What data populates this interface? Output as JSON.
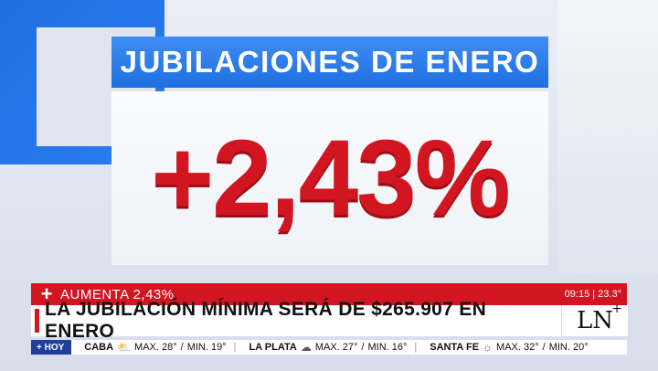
{
  "title": "JUBILACIONES DE ENERO",
  "big_number": "+2,43%",
  "ticker": {
    "plus": "+",
    "kicker": "AUMENTA 2,43%",
    "time": "09:15 | 23.3°",
    "headline": "LA JUBILACIÓN MÍNIMA SERÁ DE $265.907 EN ENERO",
    "logo": "LN",
    "logo_plus": "+",
    "hoy": "+ HOY",
    "weather": [
      {
        "city": "CABA",
        "icon": "cloud-sun-icon",
        "glyph": "⛅",
        "max": "MAX. 28°",
        "min": "MIN. 19°"
      },
      {
        "city": "LA PLATA",
        "icon": "cloud-icon",
        "glyph": "☁",
        "max": "MAX. 27°",
        "min": "MIN. 16°"
      },
      {
        "city": "SANTA FE",
        "icon": "sun-icon",
        "glyph": "☼",
        "max": "MAX. 32°",
        "min": "MIN. 20°"
      }
    ],
    "slash": "/"
  }
}
